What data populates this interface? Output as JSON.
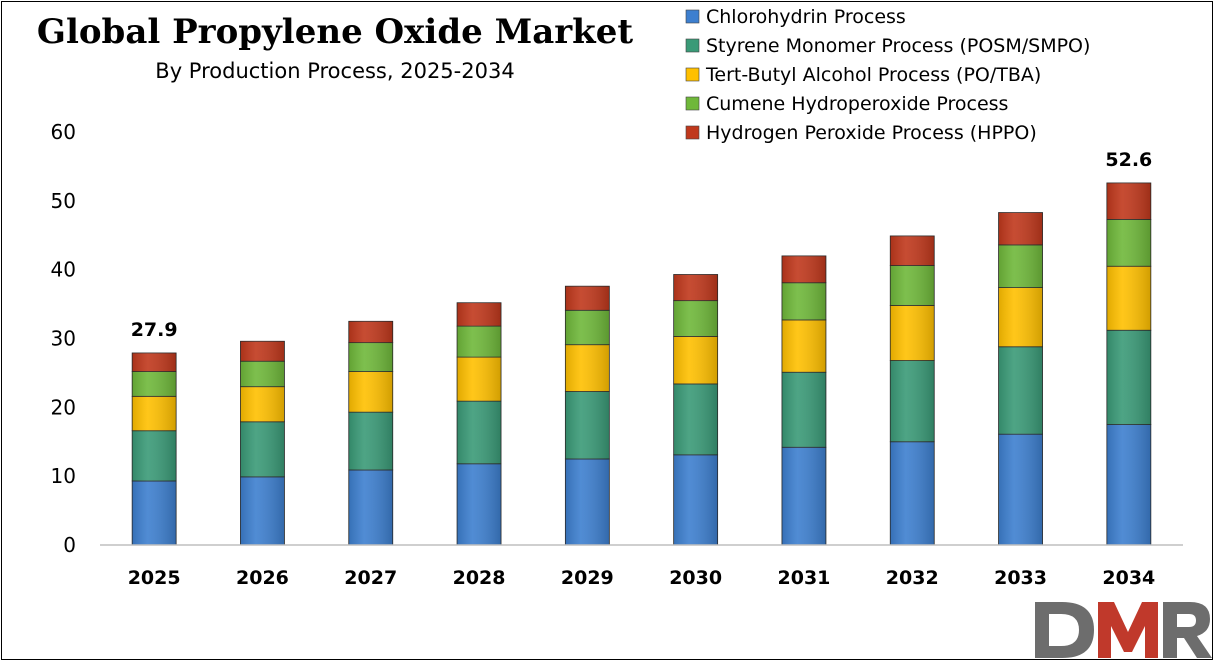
{
  "chart_data": {
    "type": "bar",
    "stacked": true,
    "title": "Global Propylene Oxide Market",
    "subtitle": "By Production Process, 2025-2034",
    "categories": [
      "2025",
      "2026",
      "2027",
      "2028",
      "2029",
      "2030",
      "2031",
      "2032",
      "2033",
      "2034"
    ],
    "series": [
      {
        "name": "Chlorohydrin Process",
        "color": "#3d7fcf",
        "values": [
          9.3,
          9.9,
          10.9,
          11.8,
          12.5,
          13.1,
          14.2,
          15.0,
          16.1,
          17.5
        ]
      },
      {
        "name": "Styrene Monomer Process (POSM/SMPO)",
        "color": "#3a9a77",
        "values": [
          7.3,
          8.0,
          8.4,
          9.1,
          9.8,
          10.3,
          10.9,
          11.8,
          12.7,
          13.7
        ]
      },
      {
        "name": "Tert-Butyl Alcohol Process (PO/TBA)",
        "color": "#ffc000",
        "values": [
          5.0,
          5.1,
          5.9,
          6.4,
          6.8,
          6.9,
          7.6,
          8.0,
          8.6,
          9.3
        ]
      },
      {
        "name": "Cumene Hydroperoxide Process",
        "color": "#6fb83a",
        "values": [
          3.6,
          3.7,
          4.2,
          4.5,
          5.0,
          5.2,
          5.4,
          5.8,
          6.2,
          6.8
        ]
      },
      {
        "name": "Hydrogen Peroxide Process (HPPO)",
        "color": "#c0381c",
        "values": [
          2.7,
          2.9,
          3.1,
          3.4,
          3.5,
          3.8,
          3.9,
          4.3,
          4.7,
          5.3
        ]
      }
    ],
    "data_labels": [
      {
        "category": "2025",
        "value": "27.9"
      },
      {
        "category": "2034",
        "value": "52.6"
      }
    ],
    "yticks": [
      "0",
      "10",
      "20",
      "30",
      "40",
      "50",
      "60"
    ],
    "ylim": [
      0,
      60
    ],
    "xlabel": "",
    "ylabel": "",
    "legend_position": "top-right",
    "grid": false
  },
  "logo": {
    "text": "DMR",
    "color": "#c0392b",
    "text_color": "#6d6d6d"
  }
}
